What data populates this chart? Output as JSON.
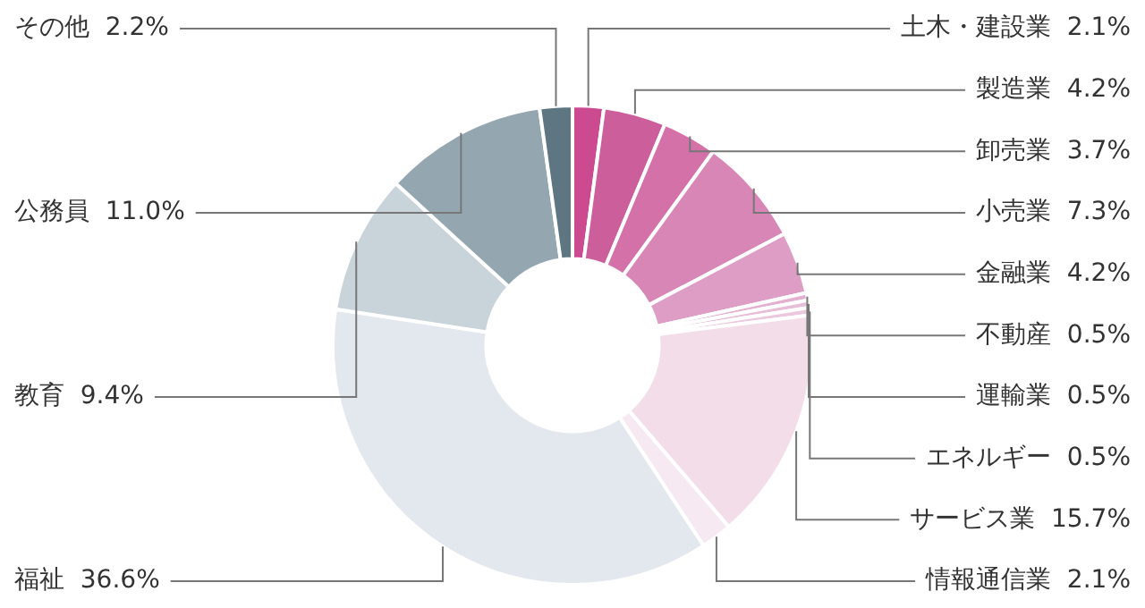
{
  "chart_data": {
    "type": "donut",
    "categories": [
      "土木・建設業",
      "製造業",
      "卸売業",
      "小売業",
      "金融業",
      "不動産",
      "運輸業",
      "エネルギー",
      "サービス業",
      "情報通信業",
      "福祉",
      "教育",
      "公務員",
      "その他"
    ],
    "values": [
      2.1,
      4.2,
      3.7,
      7.3,
      4.2,
      0.5,
      0.5,
      0.5,
      15.7,
      2.1,
      36.6,
      9.4,
      11.0,
      2.2
    ],
    "value_labels": [
      "2.1%",
      "4.2%",
      "3.7%",
      "7.3%",
      "4.2%",
      "0.5%",
      "0.5%",
      "0.5%",
      "15.7%",
      "2.1%",
      "36.6%",
      "9.4%",
      "11.0%",
      "2.2%"
    ],
    "colors": [
      "#cc4a90",
      "#cc5e9c",
      "#d371a8",
      "#d886b5",
      "#dd9dc4",
      "#e4b0d0",
      "#e8bdd7",
      "#ecc8de",
      "#f2dde9",
      "#f7e9f1",
      "#e2e8ed",
      "#c8d3da",
      "#94a6b0",
      "#5e7682"
    ],
    "legend": false
  }
}
